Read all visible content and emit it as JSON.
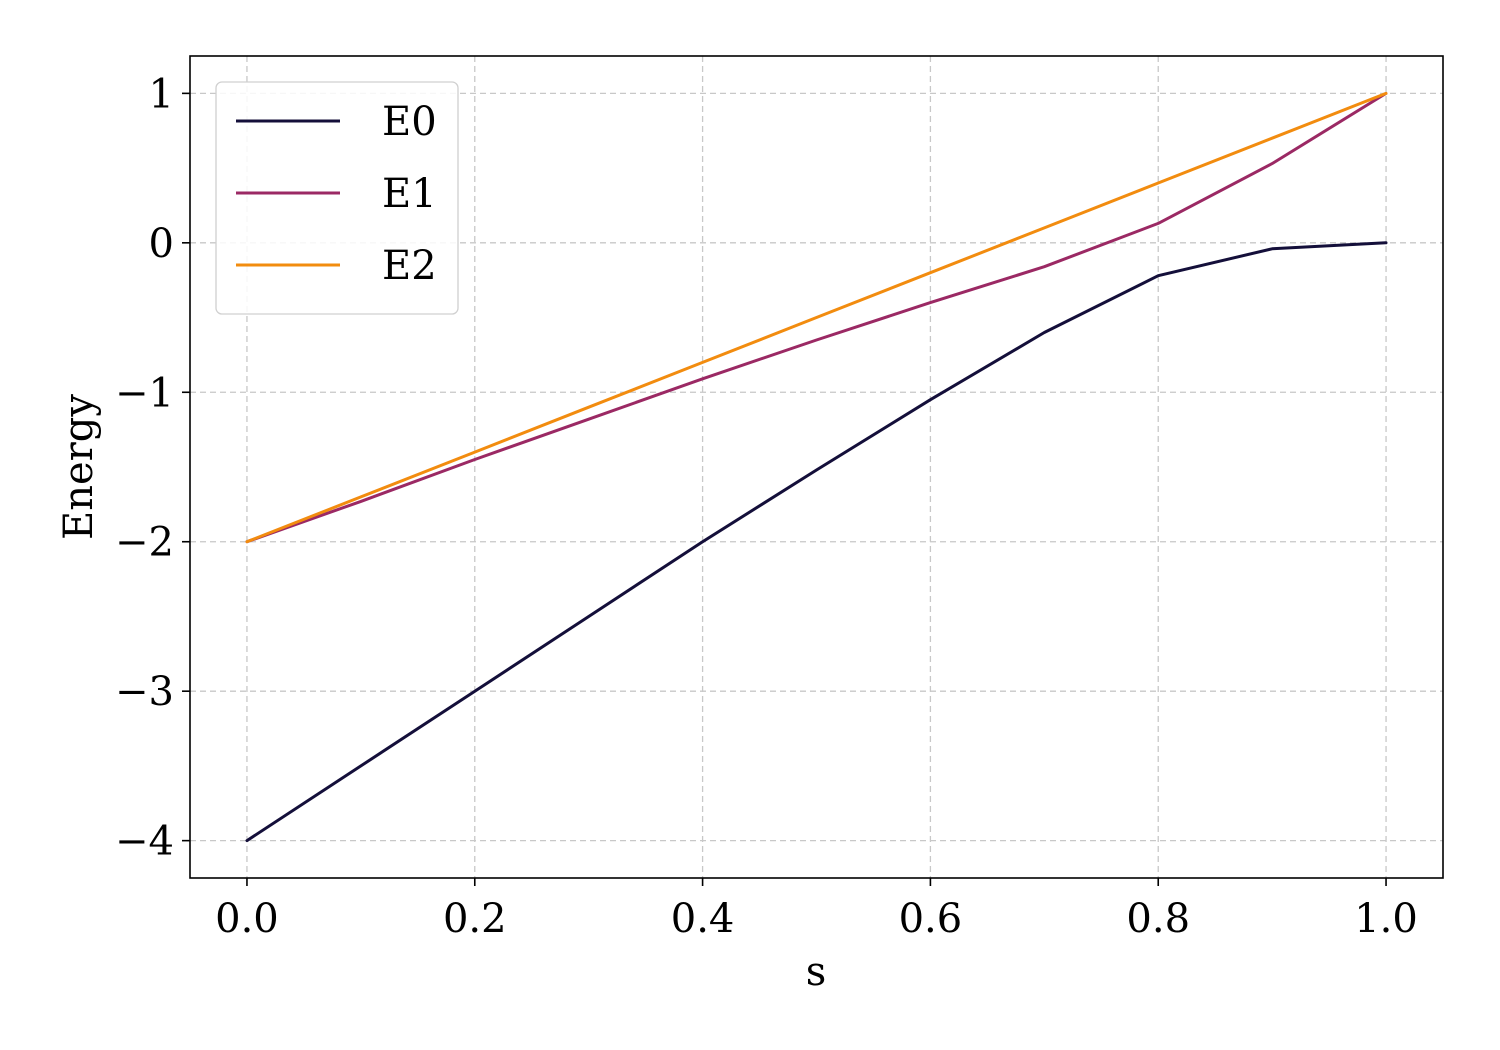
{
  "chart_data": {
    "type": "line",
    "xlabel": "s",
    "ylabel": "Energy",
    "xlim": [
      -0.05,
      1.05
    ],
    "ylim": [
      -4.25,
      1.25
    ],
    "xticks": [
      0.0,
      0.2,
      0.4,
      0.6,
      0.8,
      1.0
    ],
    "xtick_labels": [
      "0.0",
      "0.2",
      "0.4",
      "0.6",
      "0.8",
      "1.0"
    ],
    "yticks": [
      -4,
      -3,
      -2,
      -1,
      0,
      1
    ],
    "ytick_labels": [
      "−4",
      "−3",
      "−2",
      "−1",
      "0",
      "1"
    ],
    "grid": true,
    "legend_position": "top-left",
    "x": [
      0.0,
      0.1,
      0.2,
      0.3,
      0.4,
      0.5,
      0.6,
      0.7,
      0.8,
      0.9,
      1.0
    ],
    "series": [
      {
        "name": "E0",
        "color": "#140f3a",
        "values": [
          -4.0,
          -3.5,
          -3.0,
          -2.5,
          -2.0,
          -1.52,
          -1.05,
          -0.6,
          -0.22,
          -0.04,
          0.0
        ]
      },
      {
        "name": "E1",
        "color": "#9b2964",
        "values": [
          -2.0,
          -1.73,
          -1.45,
          -1.18,
          -0.91,
          -0.65,
          -0.4,
          -0.16,
          0.13,
          0.53,
          1.0
        ]
      },
      {
        "name": "E2",
        "color": "#f28c0f",
        "values": [
          -2.0,
          -1.7,
          -1.4,
          -1.1,
          -0.8,
          -0.5,
          -0.2,
          0.1,
          0.4,
          0.7,
          1.0
        ]
      }
    ]
  }
}
